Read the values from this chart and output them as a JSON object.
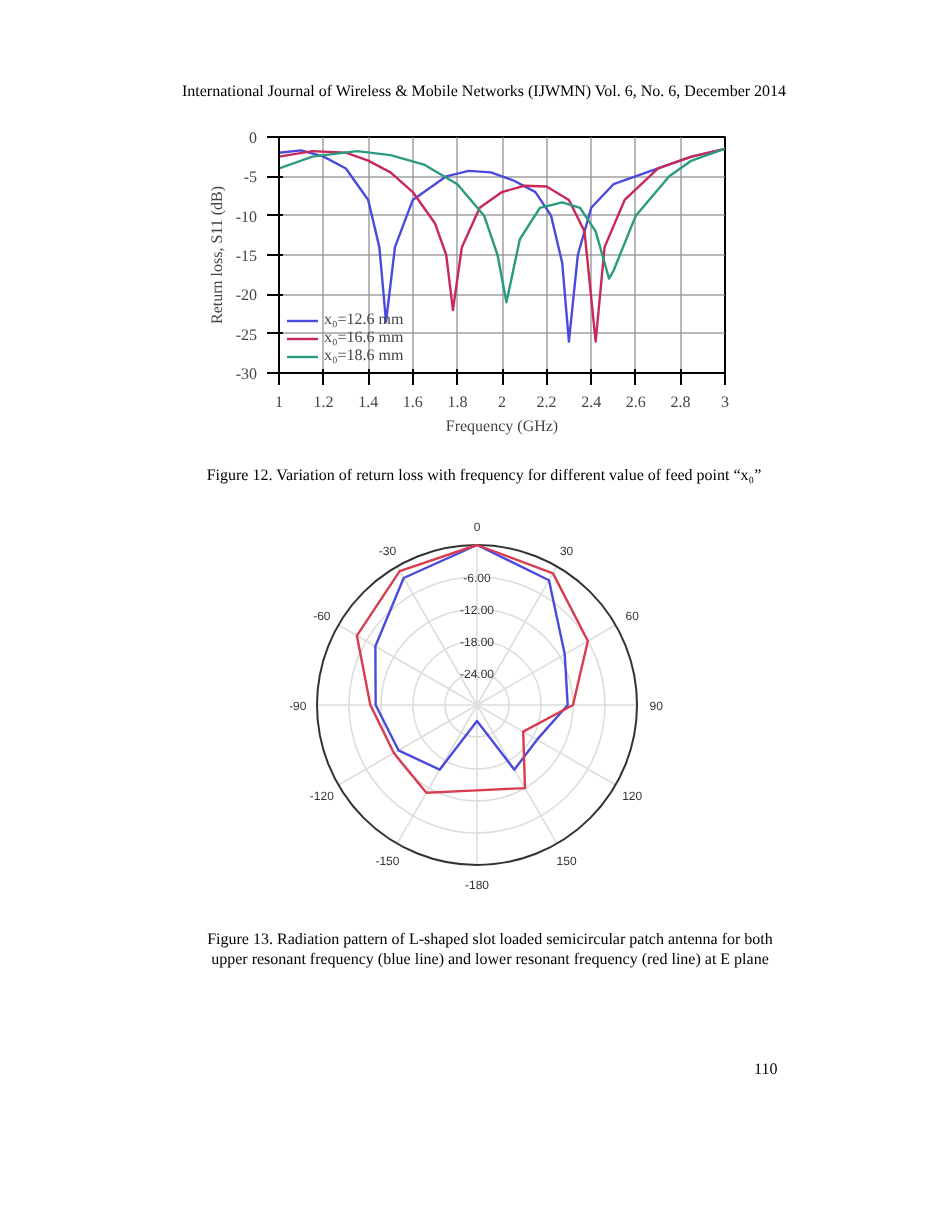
{
  "chart_data": [
    {
      "type": "line",
      "xlabel": "Frequency (GHz)",
      "ylabel": "Return loss, S11 (dB)",
      "xlim": [
        1,
        3
      ],
      "ylim": [
        -30,
        0
      ],
      "xticks": [
        1,
        1.2,
        1.4,
        1.6,
        1.8,
        2,
        2.2,
        2.4,
        2.6,
        2.8,
        3
      ],
      "yticks": [
        -30,
        -25,
        -20,
        -15,
        -10,
        -5,
        0
      ],
      "grid": true,
      "legend": "bottom left",
      "line_style": "solid",
      "marker": "none",
      "annotations": [
        "International Journal of Wireless & Mobile Networks (IJWMN) Vol. 6, No. 6, December 2014",
        "Figure 12.  Variation of return loss with frequency for different value of feed point “x₀”"
      ],
      "series": [
        {
          "name": "x₀=12.6 mm",
          "color": "#4a4adc",
          "x": [
            1,
            1.1,
            1.2,
            1.3,
            1.4,
            1.45,
            1.48,
            1.52,
            1.6,
            1.75,
            1.85,
            1.95,
            2.05,
            2.15,
            2.22,
            2.27,
            2.3,
            2.34,
            2.4,
            2.5,
            2.7,
            2.85,
            3
          ],
          "values": [
            -2,
            -1.7,
            -2.5,
            -4,
            -8,
            -14,
            -23.5,
            -14,
            -8,
            -5,
            -4.3,
            -4.5,
            -5.5,
            -7,
            -10,
            -16,
            -26,
            -15,
            -9,
            -6,
            -4,
            -2.5,
            -1.5
          ]
        },
        {
          "name": "x₀=16.6 mm",
          "color": "#c8285a",
          "x": [
            1,
            1.15,
            1.3,
            1.4,
            1.5,
            1.6,
            1.7,
            1.75,
            1.78,
            1.82,
            1.9,
            2,
            2.1,
            2.2,
            2.3,
            2.37,
            2.42,
            2.46,
            2.55,
            2.7,
            2.85,
            3
          ],
          "values": [
            -2.5,
            -1.8,
            -2,
            -3,
            -4.5,
            -7,
            -11,
            -15,
            -22,
            -14,
            -9,
            -7,
            -6.2,
            -6.3,
            -8,
            -12,
            -26,
            -14,
            -8,
            -4,
            -2.5,
            -1.5
          ]
        },
        {
          "name": "x₀=18.6 mm",
          "color": "#2a9a80",
          "x": [
            1,
            1.15,
            1.35,
            1.5,
            1.65,
            1.8,
            1.92,
            1.98,
            2.02,
            2.08,
            2.17,
            2.27,
            2.35,
            2.42,
            2.48,
            2.5,
            2.6,
            2.75,
            2.85,
            3
          ],
          "values": [
            -4,
            -2.5,
            -1.8,
            -2.3,
            -3.5,
            -6,
            -10,
            -15,
            -21,
            -13,
            -9,
            -8.3,
            -9,
            -12,
            -18,
            -17,
            -10,
            -5,
            -3,
            -1.5
          ]
        }
      ]
    },
    {
      "type": "radar",
      "ylim": [
        -30,
        0
      ],
      "yticks": [
        {
          "value": -24,
          "label": "-24.00"
        },
        {
          "value": -18,
          "label": "-18.00"
        },
        {
          "value": -12,
          "label": "-12.00"
        },
        {
          "value": -6,
          "label": "-6.00"
        }
      ],
      "grid": true,
      "categories": [
        "0",
        "30",
        "60",
        "90",
        "120",
        "150",
        "-180",
        "-150",
        "-120",
        "-90",
        "-60",
        "-30"
      ],
      "annotations": [
        "Figure 13.  Radiation pattern of L-shaped slot loaded semicircular patch antenna for both upper resonant frequency (blue line) and lower resonant frequency (red line) at E plane",
        "110"
      ],
      "series": [
        {
          "color": "#4a4adc",
          "values": [
            0,
            -3,
            -11,
            -13,
            -17,
            -16,
            -27,
            -16,
            -13,
            -11,
            -8,
            -2.5
          ]
        },
        {
          "color": "#d83c50",
          "values": [
            0,
            -1.5,
            -6,
            -12,
            -20,
            -12,
            -14,
            -11,
            -12,
            -10,
            -4,
            -1
          ]
        }
      ]
    }
  ]
}
